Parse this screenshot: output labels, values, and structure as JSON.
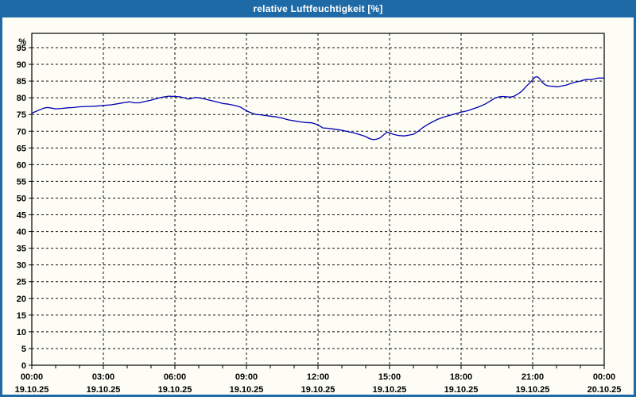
{
  "window": {
    "title": "relative Luftfeuchtigkeit [%]",
    "frame_color": "#1e6aa7",
    "background": "#fdfdf6"
  },
  "chart_data": {
    "type": "line",
    "title": "relative Luftfeuchtigkeit [%]",
    "ylabel": "%",
    "y_unit_label": "%",
    "ylim": [
      0,
      100
    ],
    "y_ticks": [
      0,
      5,
      10,
      15,
      20,
      25,
      30,
      35,
      40,
      45,
      50,
      55,
      60,
      65,
      70,
      75,
      80,
      85,
      90,
      95
    ],
    "grid": "dashed",
    "legend": "none",
    "x_range_hours": [
      0,
      24
    ],
    "x_minor_tick_hours": 1,
    "x_major_ticks": [
      {
        "hour": 0,
        "time": "00:00",
        "date": "19.10.25"
      },
      {
        "hour": 3,
        "time": "03:00",
        "date": "19.10.25"
      },
      {
        "hour": 6,
        "time": "06:00",
        "date": "19.10.25"
      },
      {
        "hour": 9,
        "time": "09:00",
        "date": "19.10.25"
      },
      {
        "hour": 12,
        "time": "12:00",
        "date": "19.10.25"
      },
      {
        "hour": 15,
        "time": "15:00",
        "date": "19.10.25"
      },
      {
        "hour": 18,
        "time": "18:00",
        "date": "19.10.25"
      },
      {
        "hour": 21,
        "time": "21:00",
        "date": "19.10.25"
      },
      {
        "hour": 24,
        "time": "00:00",
        "date": "20.10.25"
      }
    ],
    "series": [
      {
        "name": "relative Luftfeuchtigkeit",
        "color": "#0000b0",
        "points": [
          [
            0,
            75.4
          ],
          [
            0.17,
            75.9
          ],
          [
            0.33,
            76.4
          ],
          [
            0.5,
            76.9
          ],
          [
            0.67,
            77.1
          ],
          [
            0.83,
            76.9
          ],
          [
            1,
            76.7
          ],
          [
            1.25,
            76.8
          ],
          [
            1.5,
            77.0
          ],
          [
            1.75,
            77.1
          ],
          [
            2,
            77.3
          ],
          [
            2.33,
            77.4
          ],
          [
            2.67,
            77.5
          ],
          [
            3,
            77.7
          ],
          [
            3.33,
            77.9
          ],
          [
            3.67,
            78.3
          ],
          [
            3.9,
            78.6
          ],
          [
            4.1,
            78.8
          ],
          [
            4.3,
            78.5
          ],
          [
            4.5,
            78.5
          ],
          [
            4.75,
            78.9
          ],
          [
            5,
            79.3
          ],
          [
            5.25,
            79.8
          ],
          [
            5.5,
            80.2
          ],
          [
            5.75,
            80.5
          ],
          [
            6,
            80.4
          ],
          [
            6.2,
            80.3
          ],
          [
            6.4,
            80.0
          ],
          [
            6.55,
            79.6
          ],
          [
            6.7,
            79.8
          ],
          [
            6.85,
            80.1
          ],
          [
            7,
            80.0
          ],
          [
            7.2,
            79.7
          ],
          [
            7.5,
            79.2
          ],
          [
            7.75,
            78.8
          ],
          [
            8,
            78.3
          ],
          [
            8.25,
            78.1
          ],
          [
            8.5,
            77.7
          ],
          [
            8.75,
            77.2
          ],
          [
            9,
            76.1
          ],
          [
            9.2,
            75.5
          ],
          [
            9.4,
            75.0
          ],
          [
            9.6,
            74.9
          ],
          [
            9.8,
            74.7
          ],
          [
            10,
            74.5
          ],
          [
            10.25,
            74.3
          ],
          [
            10.5,
            73.9
          ],
          [
            10.75,
            73.4
          ],
          [
            11,
            73.1
          ],
          [
            11.25,
            72.8
          ],
          [
            11.5,
            72.6
          ],
          [
            11.75,
            72.5
          ],
          [
            12,
            71.9
          ],
          [
            12.2,
            71.0
          ],
          [
            12.4,
            70.9
          ],
          [
            12.6,
            70.7
          ],
          [
            12.8,
            70.5
          ],
          [
            13,
            70.3
          ],
          [
            13.25,
            69.9
          ],
          [
            13.5,
            69.5
          ],
          [
            13.75,
            69.0
          ],
          [
            14,
            68.4
          ],
          [
            14.15,
            67.8
          ],
          [
            14.3,
            67.5
          ],
          [
            14.45,
            67.6
          ],
          [
            14.6,
            68.0
          ],
          [
            14.75,
            68.9
          ],
          [
            14.9,
            69.7
          ],
          [
            15,
            69.5
          ],
          [
            15.2,
            69.0
          ],
          [
            15.4,
            68.7
          ],
          [
            15.6,
            68.6
          ],
          [
            15.8,
            68.8
          ],
          [
            16,
            69.1
          ],
          [
            16.2,
            70.0
          ],
          [
            16.4,
            71.1
          ],
          [
            16.6,
            72.0
          ],
          [
            16.8,
            72.8
          ],
          [
            17,
            73.5
          ],
          [
            17.25,
            74.2
          ],
          [
            17.5,
            74.7
          ],
          [
            17.75,
            75.2
          ],
          [
            18,
            75.7
          ],
          [
            18.25,
            76.1
          ],
          [
            18.5,
            76.7
          ],
          [
            18.75,
            77.3
          ],
          [
            19,
            78.1
          ],
          [
            19.15,
            78.7
          ],
          [
            19.3,
            79.4
          ],
          [
            19.45,
            80.0
          ],
          [
            19.6,
            80.3
          ],
          [
            19.75,
            80.4
          ],
          [
            19.9,
            80.3
          ],
          [
            20.05,
            80.2
          ],
          [
            20.2,
            80.4
          ],
          [
            20.35,
            81.0
          ],
          [
            20.5,
            81.7
          ],
          [
            20.65,
            82.8
          ],
          [
            20.8,
            83.9
          ],
          [
            20.9,
            84.6
          ],
          [
            21,
            85.4
          ],
          [
            21.1,
            86.2
          ],
          [
            21.2,
            86.3
          ],
          [
            21.3,
            85.7
          ],
          [
            21.4,
            84.6
          ],
          [
            21.55,
            83.8
          ],
          [
            21.7,
            83.5
          ],
          [
            21.9,
            83.4
          ],
          [
            22.05,
            83.3
          ],
          [
            22.2,
            83.5
          ],
          [
            22.4,
            83.8
          ],
          [
            22.6,
            84.3
          ],
          [
            22.8,
            84.7
          ],
          [
            23,
            85.0
          ],
          [
            23.15,
            85.3
          ],
          [
            23.3,
            85.5
          ],
          [
            23.45,
            85.4
          ],
          [
            23.6,
            85.7
          ],
          [
            23.75,
            85.9
          ],
          [
            24,
            85.9
          ]
        ]
      }
    ]
  }
}
